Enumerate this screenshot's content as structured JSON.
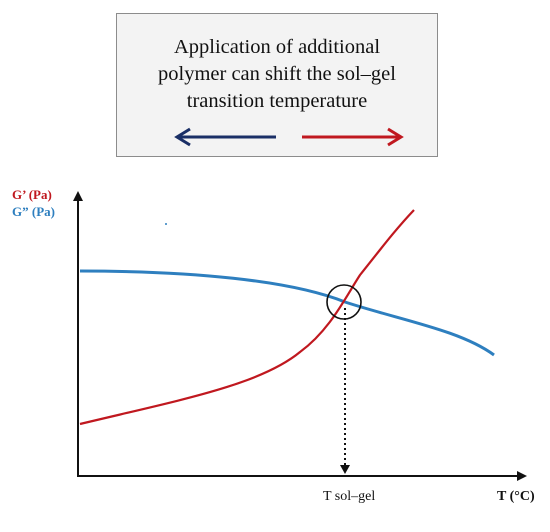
{
  "callout": {
    "lines": [
      "Application of additional",
      "polymer can shift the sol–gel",
      "transition temperature"
    ],
    "arrow_left_color": "#1a2f66",
    "arrow_right_color": "#c0181f"
  },
  "axes": {
    "y_label_1": "G’ (Pa)",
    "y_label_1_color": "#c0181f",
    "y_label_2": "G” (Pa)",
    "y_label_2_color": "#2e7fbf",
    "x_label": "T (°C)",
    "marker_label": "T sol–gel"
  },
  "curves": {
    "g_prime_color": "#c0181f",
    "g_double_prime_color": "#2e7fbf"
  }
}
